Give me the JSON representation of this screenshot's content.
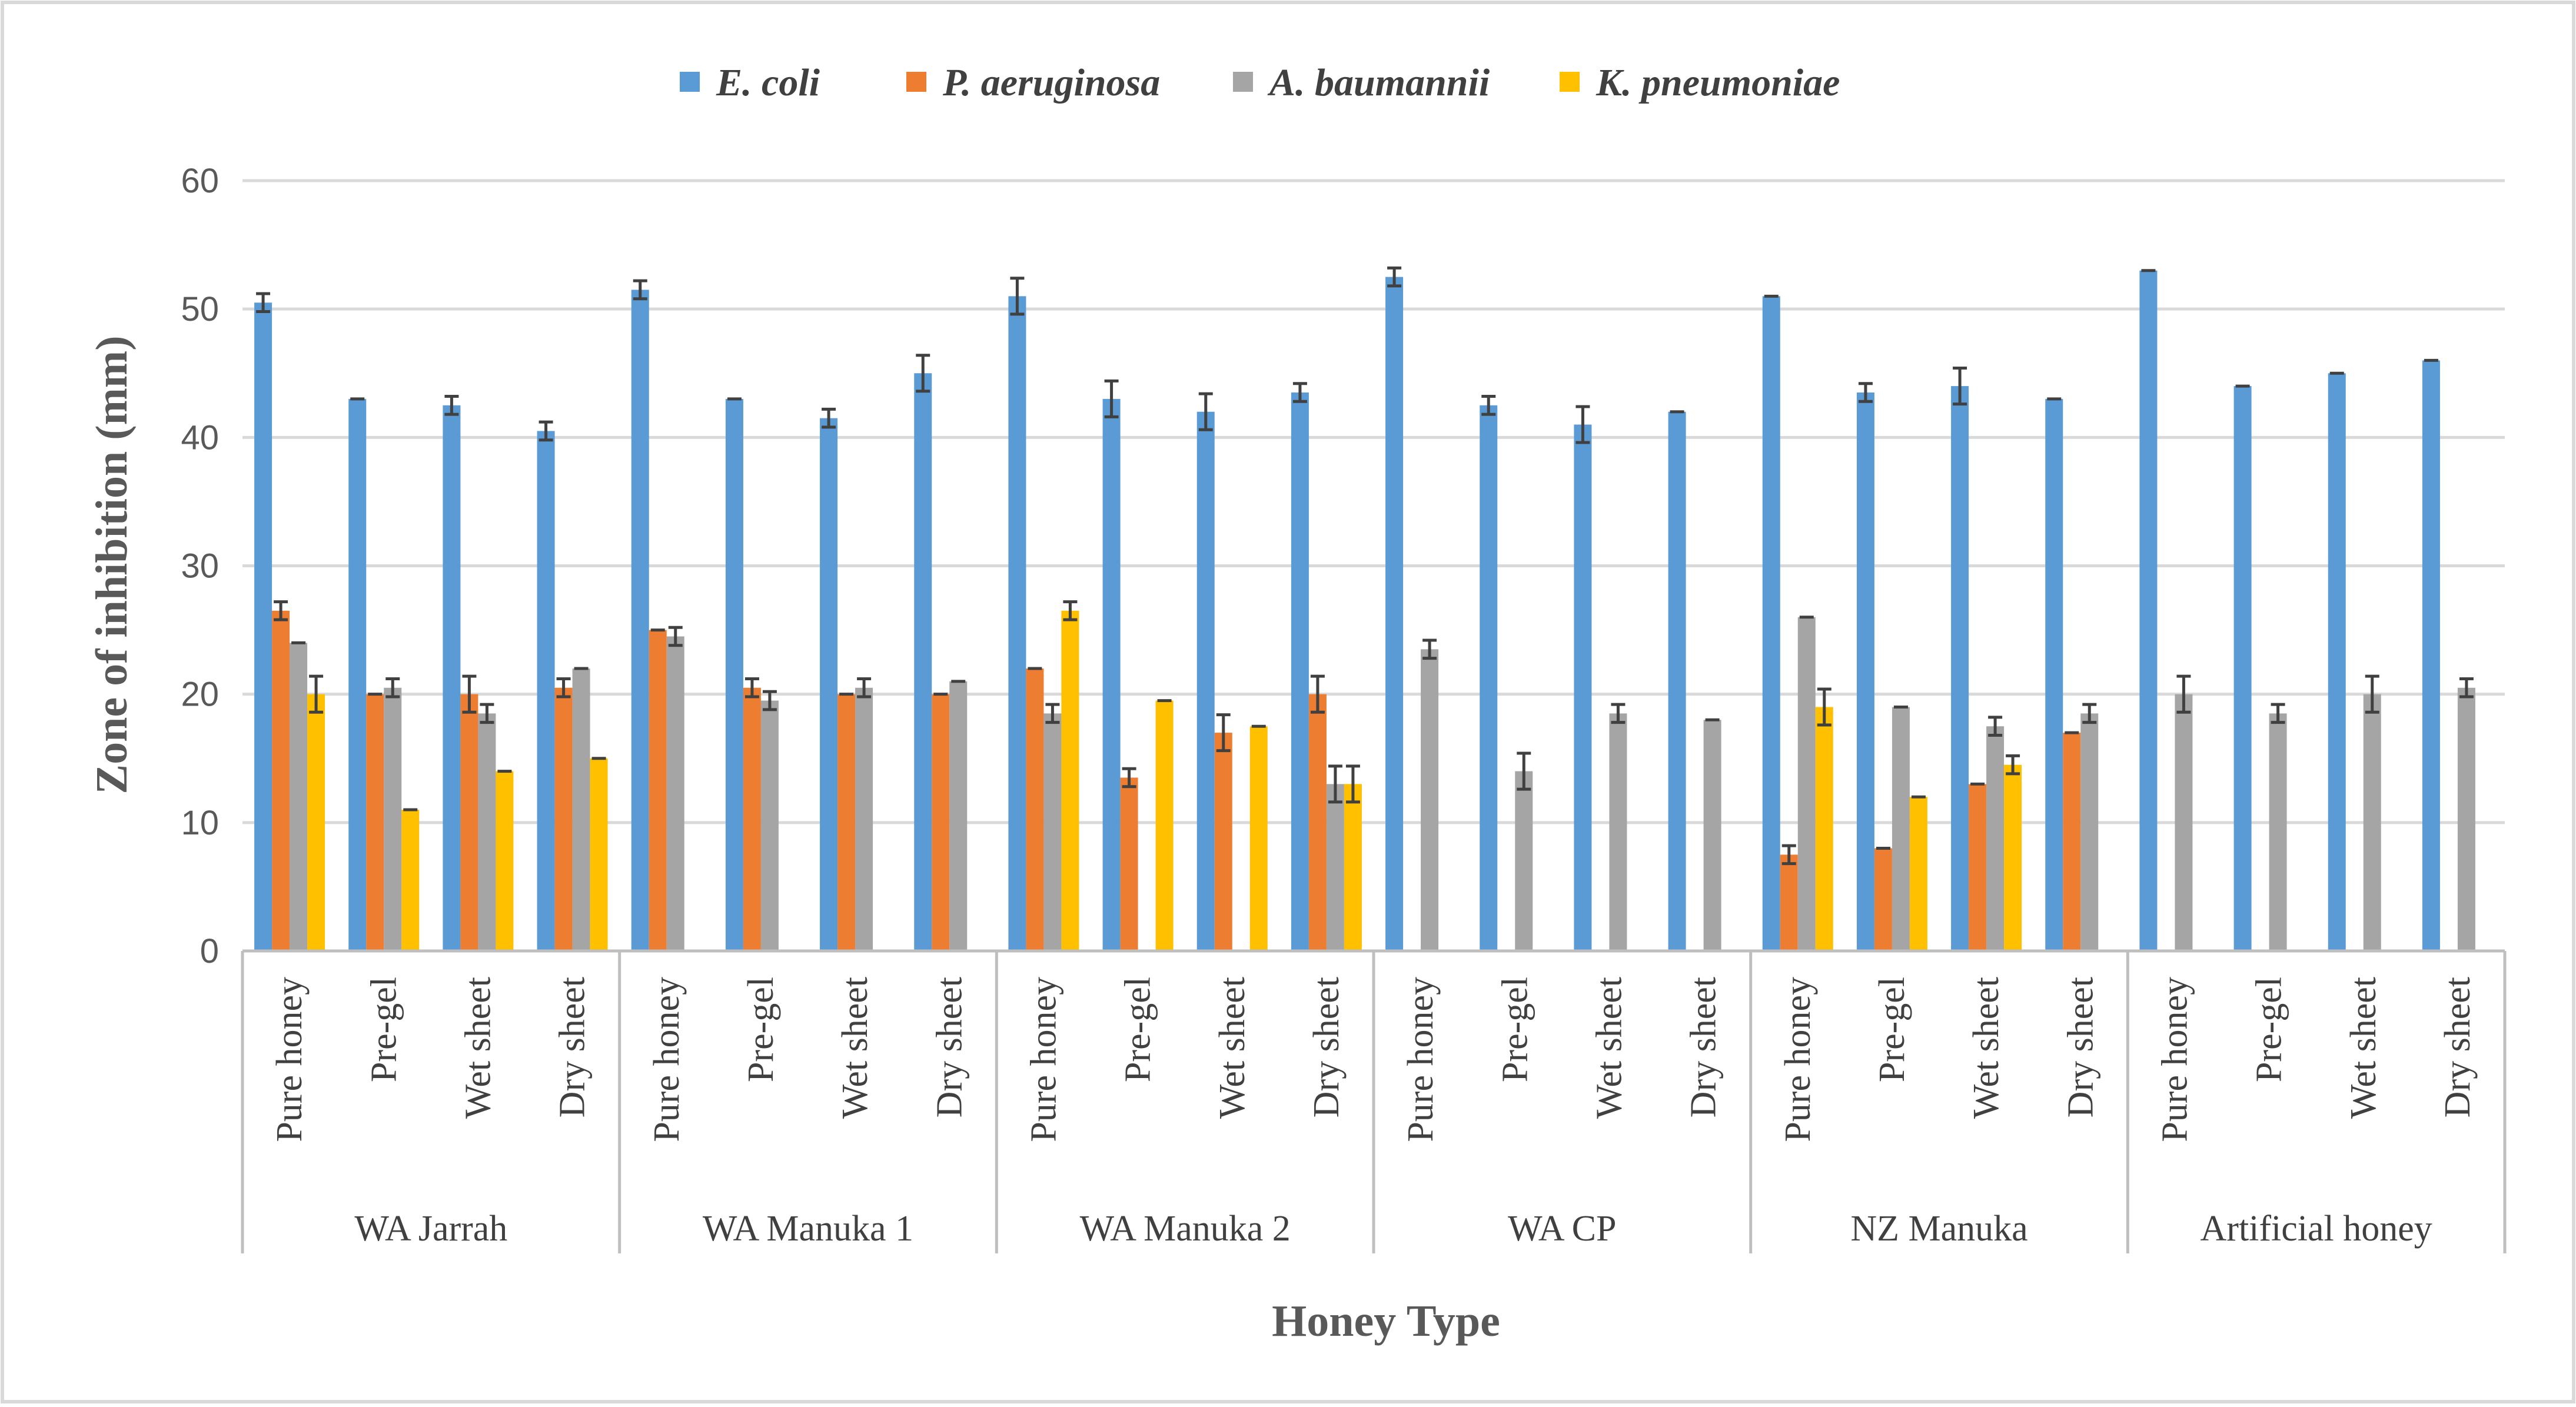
{
  "chart_data": {
    "type": "bar",
    "title": "",
    "xlabel": "Honey Type",
    "ylabel": "Zone of inhibition (mm)",
    "ylim": [
      0,
      60
    ],
    "yticks": [
      0,
      10,
      20,
      30,
      40,
      50,
      60
    ],
    "grid": true,
    "legend_position": "top",
    "groups": [
      {
        "name": "WA Jarrah",
        "categories": [
          "Pure honey",
          "Pre-gel",
          "Wet sheet",
          "Dry sheet"
        ]
      },
      {
        "name": "WA Manuka 1",
        "categories": [
          "Pure honey",
          "Pre-gel",
          "Wet sheet",
          "Dry sheet"
        ]
      },
      {
        "name": "WA Manuka 2",
        "categories": [
          "Pure honey",
          "Pre-gel",
          "Wet sheet",
          "Dry sheet"
        ]
      },
      {
        "name": "WA CP",
        "categories": [
          "Pure honey",
          "Pre-gel",
          "Wet sheet",
          "Dry sheet"
        ]
      },
      {
        "name": "NZ Manuka",
        "categories": [
          "Pure honey",
          "Pre-gel",
          "Wet sheet",
          "Dry sheet"
        ]
      },
      {
        "name": "Artificial honey",
        "categories": [
          "Pure honey",
          "Pre-gel",
          "Wet sheet",
          "Dry sheet"
        ]
      }
    ],
    "series": [
      {
        "name": "E. coli",
        "color": "#5B9BD5",
        "values": [
          50.5,
          43,
          42.5,
          40.5,
          51.5,
          43,
          41.5,
          45,
          51,
          43,
          42,
          43.5,
          52.5,
          42.5,
          41,
          42,
          51,
          43.5,
          44,
          43,
          53,
          44,
          45,
          46
        ],
        "errors": [
          0.7,
          0,
          0.7,
          0.7,
          0.7,
          0,
          0.7,
          1.4,
          1.4,
          1.4,
          1.4,
          0.7,
          0.7,
          0.7,
          1.4,
          0,
          0,
          0.7,
          1.4,
          0,
          0,
          0,
          0,
          0
        ]
      },
      {
        "name": "P. aeruginosa",
        "color": "#ED7D31",
        "values": [
          26.5,
          20,
          20,
          20.5,
          25,
          20.5,
          20,
          20,
          22,
          13.5,
          17,
          20,
          null,
          null,
          null,
          null,
          7.5,
          8,
          13,
          17,
          null,
          null,
          null,
          null
        ],
        "errors": [
          0.7,
          0,
          1.4,
          0.7,
          0,
          0.7,
          0,
          0,
          0,
          0.7,
          1.4,
          1.4,
          0,
          0,
          0,
          0,
          0.7,
          0,
          0,
          0,
          0,
          0,
          0,
          0
        ]
      },
      {
        "name": "A. baumannii",
        "color": "#A5A5A5",
        "values": [
          24,
          20.5,
          18.5,
          22,
          24.5,
          19.5,
          20.5,
          21,
          18.5,
          null,
          null,
          13,
          23.5,
          14,
          18.5,
          18,
          26,
          19,
          17.5,
          18.5,
          20,
          18.5,
          20,
          20.5
        ],
        "errors": [
          0,
          0.7,
          0.7,
          0,
          0.7,
          0.7,
          0.7,
          0,
          0.7,
          0,
          0,
          1.4,
          0.7,
          1.4,
          0.7,
          0,
          0,
          0,
          0.7,
          0.7,
          1.4,
          0.7,
          1.4,
          0.7
        ]
      },
      {
        "name": "K. pneumoniae",
        "color": "#FFC000",
        "values": [
          20,
          11,
          14,
          15,
          null,
          null,
          null,
          null,
          26.5,
          19.5,
          17.5,
          13,
          null,
          null,
          null,
          null,
          19,
          12,
          14.5,
          null,
          null,
          null,
          null,
          null
        ],
        "errors": [
          1.4,
          0,
          0,
          0,
          0,
          0,
          0,
          0,
          0.7,
          0,
          0,
          1.4,
          0,
          0,
          0,
          0,
          1.4,
          0,
          0.7,
          0,
          0,
          0,
          0,
          0
        ]
      }
    ]
  }
}
